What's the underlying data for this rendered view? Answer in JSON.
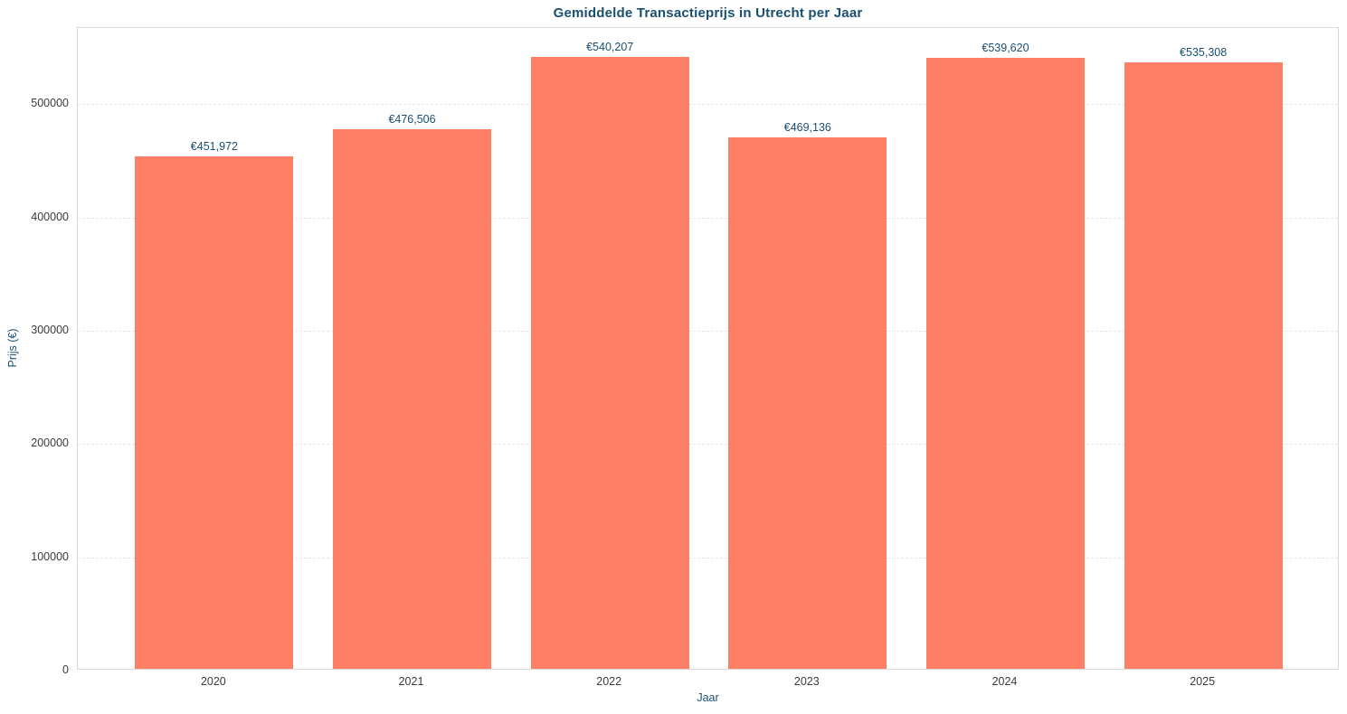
{
  "chart_data": {
    "type": "bar",
    "title": "Gemiddelde Transactieprijs in Utrecht per Jaar",
    "xlabel": "Jaar",
    "ylabel": "Prijs (€)",
    "categories": [
      "2020",
      "2021",
      "2022",
      "2023",
      "2024",
      "2025"
    ],
    "values": [
      451972,
      476506,
      540207,
      469136,
      539620,
      535308
    ],
    "bar_labels": [
      "€451,972",
      "€476,506",
      "€540,207",
      "€469,136",
      "€539,620",
      "€535,308"
    ],
    "y_ticks": [
      0,
      100000,
      200000,
      300000,
      400000,
      500000
    ],
    "y_tick_labels": [
      "0",
      "100000",
      "200000",
      "300000",
      "400000",
      "500000"
    ],
    "ylim": [
      0,
      567217
    ],
    "grid": "horizontal-dashed",
    "legend": "none"
  },
  "colors": {
    "bar": "#ff7f66",
    "title_text": "#1b4f72",
    "axis_label_text": "#1b4f72",
    "bar_label_text": "#1b4f72",
    "tick_text": "#3a3a3a",
    "gridline": "#e6e6e6",
    "spine": "#d9d9d9",
    "background": "#ffffff"
  }
}
